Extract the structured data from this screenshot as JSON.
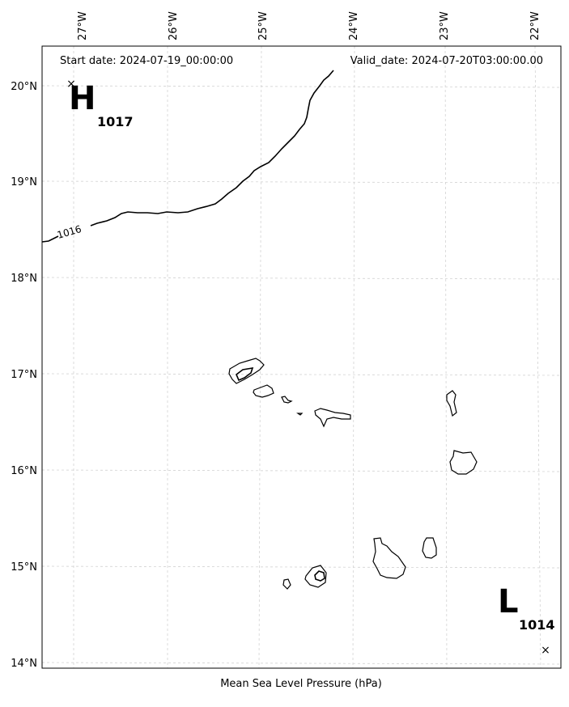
{
  "header": {
    "start_date": "Start date: 2024-07-19_00:00:00",
    "valid_date": "Valid_date: 2024-07-20T03:00:00.00"
  },
  "footer": {
    "caption": "Mean Sea Level Pressure (hPa)"
  },
  "axes": {
    "longitude_ticks": [
      "27°W",
      "26°W",
      "25°W",
      "24°W",
      "23°W",
      "22°W"
    ],
    "latitude_ticks": [
      "20°N",
      "19°N",
      "18°N",
      "17°N",
      "16°N",
      "15°N",
      "14°N"
    ]
  },
  "isobar": {
    "label": "1016"
  },
  "pressure_centers": {
    "high": {
      "symbol": "H",
      "value": "1017"
    },
    "low": {
      "symbol": "L",
      "value": "1014"
    }
  },
  "colors": {
    "grid": "#cccccc",
    "line": "#000000"
  }
}
